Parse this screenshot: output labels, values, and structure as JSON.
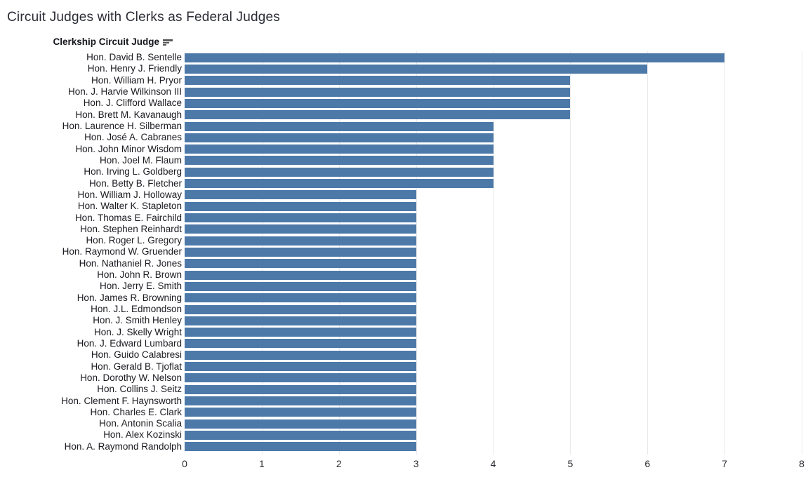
{
  "chart_data": {
    "type": "bar",
    "orientation": "horizontal",
    "title": "Circuit Judges with Clerks as Federal Judges",
    "row_header": "Clerkship Circuit Judge",
    "sort": "descending",
    "categories": [
      "Hon. David B. Sentelle",
      "Hon. Henry J. Friendly",
      "Hon. William H. Pryor",
      "Hon. J. Harvie Wilkinson III",
      "Hon. J. Clifford Wallace",
      "Hon. Brett M. Kavanaugh",
      "Hon. Laurence H. Silberman",
      "Hon. José A. Cabranes",
      "Hon. John Minor Wisdom",
      "Hon. Joel M. Flaum",
      "Hon. Irving L. Goldberg",
      "Hon. Betty B. Fletcher",
      "Hon. William J. Holloway",
      "Hon. Walter K. Stapleton",
      "Hon. Thomas E. Fairchild",
      "Hon. Stephen Reinhardt",
      "Hon. Roger L. Gregory",
      "Hon. Raymond W. Gruender",
      "Hon. Nathaniel R. Jones",
      "Hon. John R. Brown",
      "Hon. Jerry E. Smith",
      "Hon. James R. Browning",
      "Hon. J.L. Edmondson",
      "Hon. J. Smith Henley",
      "Hon. J. Skelly Wright",
      "Hon. J. Edward Lumbard",
      "Hon. Guido Calabresi",
      "Hon. Gerald B. Tjoflat",
      "Hon. Dorothy W. Nelson",
      "Hon. Collins J. Seitz",
      "Hon. Clement F. Haynsworth",
      "Hon. Charles E. Clark",
      "Hon. Antonin Scalia",
      "Hon. Alex Kozinski",
      "Hon. A. Raymond Randolph"
    ],
    "values": [
      7,
      6,
      5,
      5,
      5,
      5,
      4,
      4,
      4,
      4,
      4,
      4,
      3,
      3,
      3,
      3,
      3,
      3,
      3,
      3,
      3,
      3,
      3,
      3,
      3,
      3,
      3,
      3,
      3,
      3,
      3,
      3,
      3,
      3,
      3
    ],
    "xlabel": "",
    "ylabel": "Clerkship Circuit Judge",
    "xlim": [
      0,
      8
    ],
    "x_ticks": [
      0,
      1,
      2,
      3,
      4,
      5,
      6,
      7,
      8
    ],
    "grid": "vertical"
  },
  "colors": {
    "bar": "#4d79a9",
    "gridline": "#e9e9ec",
    "title_text": "#2b2c35",
    "label_text": "#1a1a20",
    "axis_text": "#2b2c33"
  },
  "icons": {
    "sort": "sort-descending-icon"
  }
}
